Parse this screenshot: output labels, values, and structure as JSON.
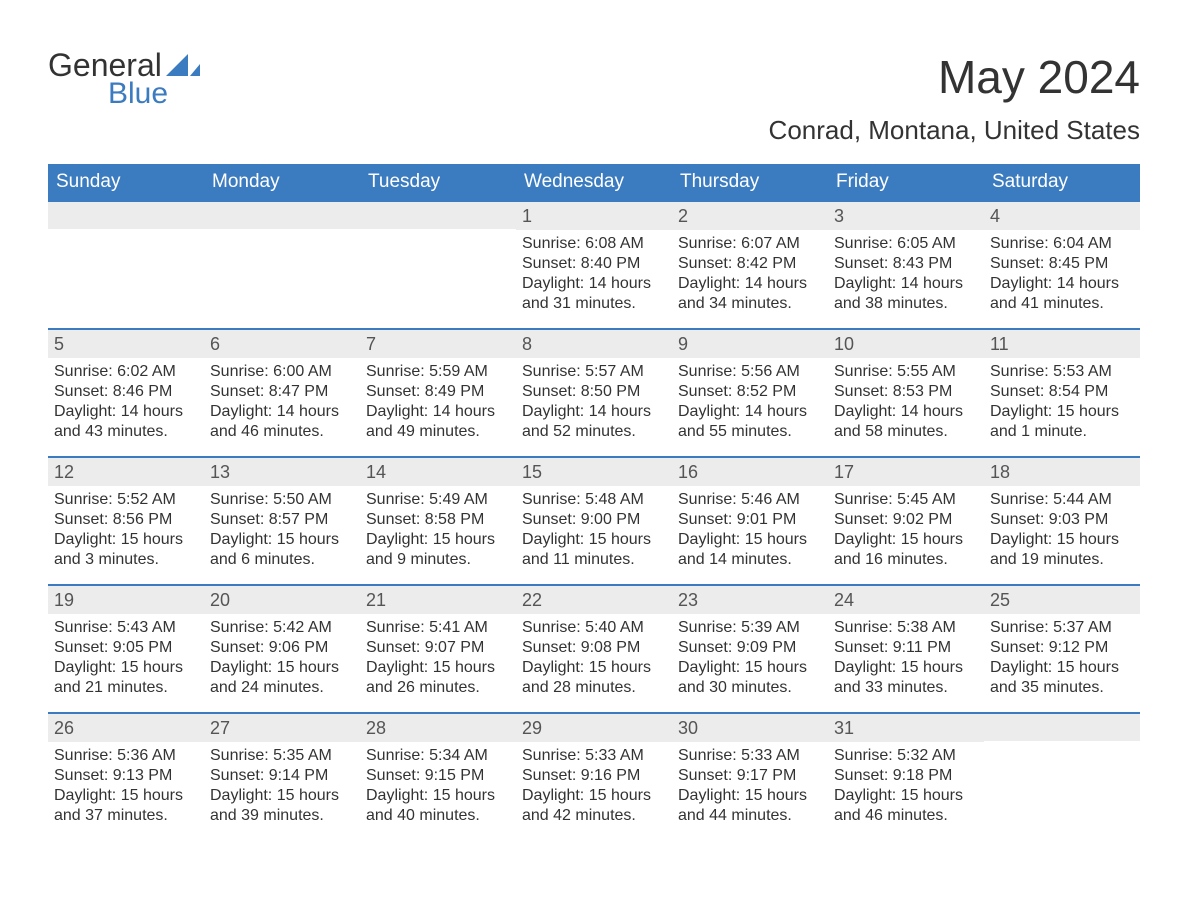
{
  "logo": {
    "text_top": "General",
    "text_bottom": "Blue"
  },
  "title": "May 2024",
  "subtitle": "Conrad, Montana, United States",
  "colors": {
    "header_bg": "#3b7bbf",
    "header_text": "#ffffff",
    "daynum_bg": "#ececec",
    "text": "#333333",
    "rule": "#3b7bbf"
  },
  "day_headers": [
    "Sunday",
    "Monday",
    "Tuesday",
    "Wednesday",
    "Thursday",
    "Friday",
    "Saturday"
  ],
  "weeks": [
    [
      {
        "num": "",
        "sunrise": "",
        "sunset": "",
        "daylight": ""
      },
      {
        "num": "",
        "sunrise": "",
        "sunset": "",
        "daylight": ""
      },
      {
        "num": "",
        "sunrise": "",
        "sunset": "",
        "daylight": ""
      },
      {
        "num": "1",
        "sunrise": "Sunrise: 6:08 AM",
        "sunset": "Sunset: 8:40 PM",
        "daylight": "Daylight: 14 hours and 31 minutes."
      },
      {
        "num": "2",
        "sunrise": "Sunrise: 6:07 AM",
        "sunset": "Sunset: 8:42 PM",
        "daylight": "Daylight: 14 hours and 34 minutes."
      },
      {
        "num": "3",
        "sunrise": "Sunrise: 6:05 AM",
        "sunset": "Sunset: 8:43 PM",
        "daylight": "Daylight: 14 hours and 38 minutes."
      },
      {
        "num": "4",
        "sunrise": "Sunrise: 6:04 AM",
        "sunset": "Sunset: 8:45 PM",
        "daylight": "Daylight: 14 hours and 41 minutes."
      }
    ],
    [
      {
        "num": "5",
        "sunrise": "Sunrise: 6:02 AM",
        "sunset": "Sunset: 8:46 PM",
        "daylight": "Daylight: 14 hours and 43 minutes."
      },
      {
        "num": "6",
        "sunrise": "Sunrise: 6:00 AM",
        "sunset": "Sunset: 8:47 PM",
        "daylight": "Daylight: 14 hours and 46 minutes."
      },
      {
        "num": "7",
        "sunrise": "Sunrise: 5:59 AM",
        "sunset": "Sunset: 8:49 PM",
        "daylight": "Daylight: 14 hours and 49 minutes."
      },
      {
        "num": "8",
        "sunrise": "Sunrise: 5:57 AM",
        "sunset": "Sunset: 8:50 PM",
        "daylight": "Daylight: 14 hours and 52 minutes."
      },
      {
        "num": "9",
        "sunrise": "Sunrise: 5:56 AM",
        "sunset": "Sunset: 8:52 PM",
        "daylight": "Daylight: 14 hours and 55 minutes."
      },
      {
        "num": "10",
        "sunrise": "Sunrise: 5:55 AM",
        "sunset": "Sunset: 8:53 PM",
        "daylight": "Daylight: 14 hours and 58 minutes."
      },
      {
        "num": "11",
        "sunrise": "Sunrise: 5:53 AM",
        "sunset": "Sunset: 8:54 PM",
        "daylight": "Daylight: 15 hours and 1 minute."
      }
    ],
    [
      {
        "num": "12",
        "sunrise": "Sunrise: 5:52 AM",
        "sunset": "Sunset: 8:56 PM",
        "daylight": "Daylight: 15 hours and 3 minutes."
      },
      {
        "num": "13",
        "sunrise": "Sunrise: 5:50 AM",
        "sunset": "Sunset: 8:57 PM",
        "daylight": "Daylight: 15 hours and 6 minutes."
      },
      {
        "num": "14",
        "sunrise": "Sunrise: 5:49 AM",
        "sunset": "Sunset: 8:58 PM",
        "daylight": "Daylight: 15 hours and 9 minutes."
      },
      {
        "num": "15",
        "sunrise": "Sunrise: 5:48 AM",
        "sunset": "Sunset: 9:00 PM",
        "daylight": "Daylight: 15 hours and 11 minutes."
      },
      {
        "num": "16",
        "sunrise": "Sunrise: 5:46 AM",
        "sunset": "Sunset: 9:01 PM",
        "daylight": "Daylight: 15 hours and 14 minutes."
      },
      {
        "num": "17",
        "sunrise": "Sunrise: 5:45 AM",
        "sunset": "Sunset: 9:02 PM",
        "daylight": "Daylight: 15 hours and 16 minutes."
      },
      {
        "num": "18",
        "sunrise": "Sunrise: 5:44 AM",
        "sunset": "Sunset: 9:03 PM",
        "daylight": "Daylight: 15 hours and 19 minutes."
      }
    ],
    [
      {
        "num": "19",
        "sunrise": "Sunrise: 5:43 AM",
        "sunset": "Sunset: 9:05 PM",
        "daylight": "Daylight: 15 hours and 21 minutes."
      },
      {
        "num": "20",
        "sunrise": "Sunrise: 5:42 AM",
        "sunset": "Sunset: 9:06 PM",
        "daylight": "Daylight: 15 hours and 24 minutes."
      },
      {
        "num": "21",
        "sunrise": "Sunrise: 5:41 AM",
        "sunset": "Sunset: 9:07 PM",
        "daylight": "Daylight: 15 hours and 26 minutes."
      },
      {
        "num": "22",
        "sunrise": "Sunrise: 5:40 AM",
        "sunset": "Sunset: 9:08 PM",
        "daylight": "Daylight: 15 hours and 28 minutes."
      },
      {
        "num": "23",
        "sunrise": "Sunrise: 5:39 AM",
        "sunset": "Sunset: 9:09 PM",
        "daylight": "Daylight: 15 hours and 30 minutes."
      },
      {
        "num": "24",
        "sunrise": "Sunrise: 5:38 AM",
        "sunset": "Sunset: 9:11 PM",
        "daylight": "Daylight: 15 hours and 33 minutes."
      },
      {
        "num": "25",
        "sunrise": "Sunrise: 5:37 AM",
        "sunset": "Sunset: 9:12 PM",
        "daylight": "Daylight: 15 hours and 35 minutes."
      }
    ],
    [
      {
        "num": "26",
        "sunrise": "Sunrise: 5:36 AM",
        "sunset": "Sunset: 9:13 PM",
        "daylight": "Daylight: 15 hours and 37 minutes."
      },
      {
        "num": "27",
        "sunrise": "Sunrise: 5:35 AM",
        "sunset": "Sunset: 9:14 PM",
        "daylight": "Daylight: 15 hours and 39 minutes."
      },
      {
        "num": "28",
        "sunrise": "Sunrise: 5:34 AM",
        "sunset": "Sunset: 9:15 PM",
        "daylight": "Daylight: 15 hours and 40 minutes."
      },
      {
        "num": "29",
        "sunrise": "Sunrise: 5:33 AM",
        "sunset": "Sunset: 9:16 PM",
        "daylight": "Daylight: 15 hours and 42 minutes."
      },
      {
        "num": "30",
        "sunrise": "Sunrise: 5:33 AM",
        "sunset": "Sunset: 9:17 PM",
        "daylight": "Daylight: 15 hours and 44 minutes."
      },
      {
        "num": "31",
        "sunrise": "Sunrise: 5:32 AM",
        "sunset": "Sunset: 9:18 PM",
        "daylight": "Daylight: 15 hours and 46 minutes."
      },
      {
        "num": "",
        "sunrise": "",
        "sunset": "",
        "daylight": ""
      }
    ]
  ]
}
